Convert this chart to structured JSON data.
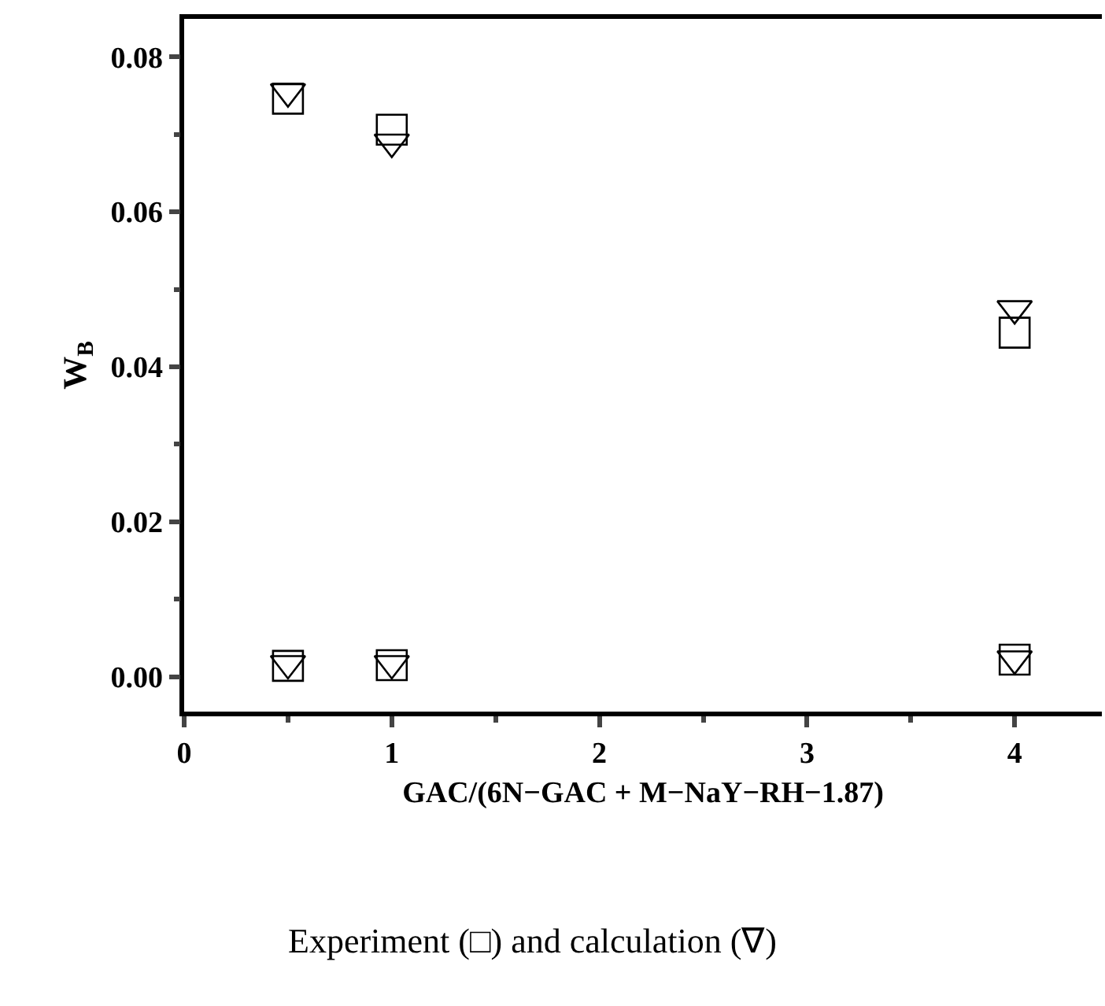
{
  "chart_data": {
    "type": "scatter",
    "xlabel": "GAC/(6N−GAC + M−NaY−RH−1.87)",
    "ylabel": "W$_{B}$",
    "annotations": [
      "Experiment (□) and calculation (∇)"
    ],
    "series": [
      {
        "marker": "square",
        "color": "#000000",
        "x": [
          0.5,
          1,
          4,
          0.5,
          1,
          4
        ],
        "values": [
          0.0746,
          0.0706,
          0.0444,
          0.0014,
          0.0015,
          0.0022
        ]
      },
      {
        "marker": "triangle",
        "color": "#000000",
        "x": [
          0.5,
          1,
          4,
          0.5,
          1,
          4
        ],
        "values": [
          0.0755,
          0.069,
          0.0475,
          0.0017,
          0.0017,
          0.0023
        ]
      }
    ],
    "xlim": [
      0,
      4.42
    ],
    "xticks": [
      0,
      1,
      2,
      3,
      4
    ],
    "ylim": [
      -0.0045,
      0.0849
    ],
    "yticks": [
      {
        "value": 0,
        "label": "0.00"
      },
      {
        "value": 0.02,
        "label": "0.02"
      },
      {
        "value": 0.04,
        "label": "0.04"
      },
      {
        "value": 0.06,
        "label": "0.06"
      },
      {
        "value": 0.08,
        "label": "0.08"
      }
    ],
    "tick_labels": "xy"
  }
}
